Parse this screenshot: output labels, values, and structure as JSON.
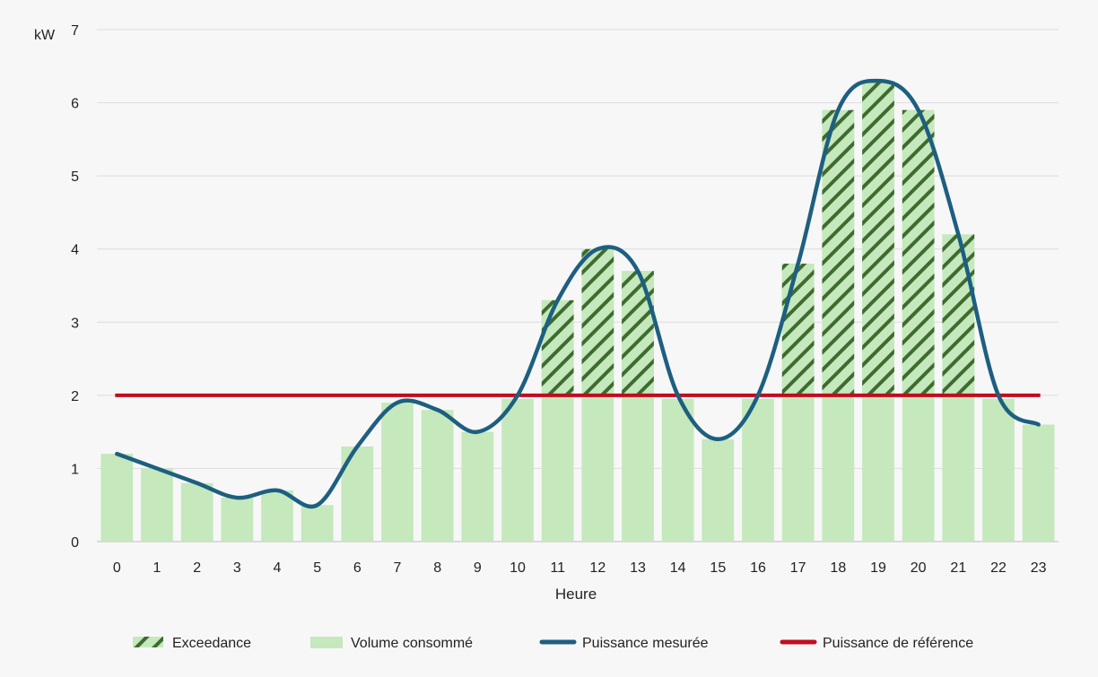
{
  "chart_data": {
    "type": "bar",
    "title": "",
    "xlabel": "Heure",
    "ylabel": "kW",
    "ylim": [
      0,
      7
    ],
    "yticks": [
      0,
      1,
      2,
      3,
      4,
      5,
      6,
      7
    ],
    "grid": true,
    "legend_position": "bottom",
    "categories": [
      "0",
      "1",
      "2",
      "3",
      "4",
      "5",
      "6",
      "7",
      "8",
      "9",
      "10",
      "11",
      "12",
      "13",
      "14",
      "15",
      "16",
      "17",
      "18",
      "19",
      "20",
      "21",
      "22",
      "23"
    ],
    "series": [
      {
        "name": "Volume consommé",
        "kind": "bar",
        "color": "#c5e8bc",
        "values": [
          1.2,
          1.0,
          0.8,
          0.6,
          0.7,
          0.5,
          1.3,
          1.9,
          1.8,
          1.5,
          1.95,
          3.3,
          4.0,
          3.7,
          1.95,
          1.4,
          1.95,
          3.8,
          5.9,
          6.3,
          5.9,
          4.2,
          1.95,
          1.6
        ]
      },
      {
        "name": "Puissance mesurée",
        "kind": "smooth-line",
        "color": "#1d5f80",
        "values": [
          1.2,
          1.0,
          0.8,
          0.6,
          0.7,
          0.5,
          1.3,
          1.9,
          1.8,
          1.5,
          2.0,
          3.3,
          4.0,
          3.7,
          2.0,
          1.4,
          2.0,
          3.8,
          5.9,
          6.3,
          5.9,
          4.2,
          2.0,
          1.6
        ]
      },
      {
        "name": "Puissance de référence",
        "kind": "line",
        "color": "#c00d1e",
        "value": 2
      },
      {
        "name": "Exceedance",
        "kind": "hatch",
        "color": "#3e6b30",
        "note_threshold": 2
      }
    ]
  }
}
